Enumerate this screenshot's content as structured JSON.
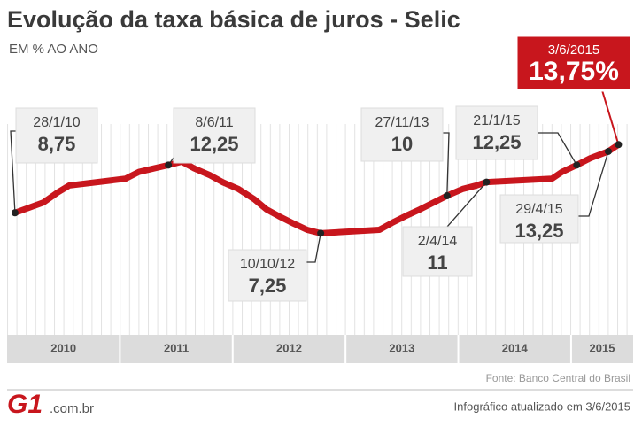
{
  "chart_data": {
    "type": "line",
    "title": "Evolução da taxa básica de juros - Selic",
    "subtitle": "EM % AO ANO",
    "x": [
      2010.07,
      2010.32,
      2010.45,
      2010.55,
      2011.05,
      2011.17,
      2011.3,
      2011.43,
      2011.55,
      2011.66,
      2011.8,
      2011.91,
      2012.05,
      2012.19,
      2012.3,
      2012.41,
      2012.53,
      2012.66,
      2012.78,
      2013.3,
      2013.41,
      2013.53,
      2013.66,
      2013.78,
      2013.9,
      2014.04,
      2014.16,
      2014.25,
      2014.83,
      2014.92,
      2015.05,
      2015.17,
      2015.33,
      2015.42
    ],
    "series": [
      {
        "color": "#c8161d",
        "values": [
          8.75,
          9.5,
          10.25,
          10.75,
          11.25,
          11.75,
          12,
          12.25,
          12.5,
          12,
          11.5,
          11,
          10.5,
          9.75,
          9,
          8.5,
          8,
          7.5,
          7.25,
          7.5,
          8,
          8.5,
          9,
          9.5,
          10,
          10.5,
          10.75,
          11,
          11.25,
          11.75,
          12.25,
          12.75,
          13.25,
          13.75
        ]
      }
    ],
    "xlim": [
      2010,
      2015.55
    ],
    "xticks": [
      2010,
      2011,
      2012,
      2013,
      2014,
      2015
    ],
    "ylim": [
      0,
      15
    ],
    "annotations": [
      {
        "x": 2010.07,
        "label": "28/1/10",
        "value": 8.75,
        "value_label": "8,75"
      },
      {
        "x": 2011.43,
        "label": "8/6/11",
        "value": 12.25,
        "value_label": "12,25"
      },
      {
        "x": 2012.78,
        "label": "10/10/12",
        "value": 7.25,
        "value_label": "7,25"
      },
      {
        "x": 2013.9,
        "label": "27/11/13",
        "value": 10,
        "value_label": "10"
      },
      {
        "x": 2014.25,
        "label": "2/4/14",
        "value": 11,
        "value_label": "11"
      },
      {
        "x": 2015.05,
        "label": "21/1/15",
        "value": 12.25,
        "value_label": "12,25"
      },
      {
        "x": 2015.33,
        "label": "29/4/15",
        "value": 13.25,
        "value_label": "13,25"
      },
      {
        "x": 2015.42,
        "label": "3/6/2015",
        "value": 13.75,
        "value_label": "13,75%"
      }
    ],
    "source": "Fonte: Banco Central do Brasil",
    "note": "Infográfico atualizado em 3/6/2015"
  },
  "logo": {
    "mark": "G1",
    "domain": ".com.br"
  }
}
